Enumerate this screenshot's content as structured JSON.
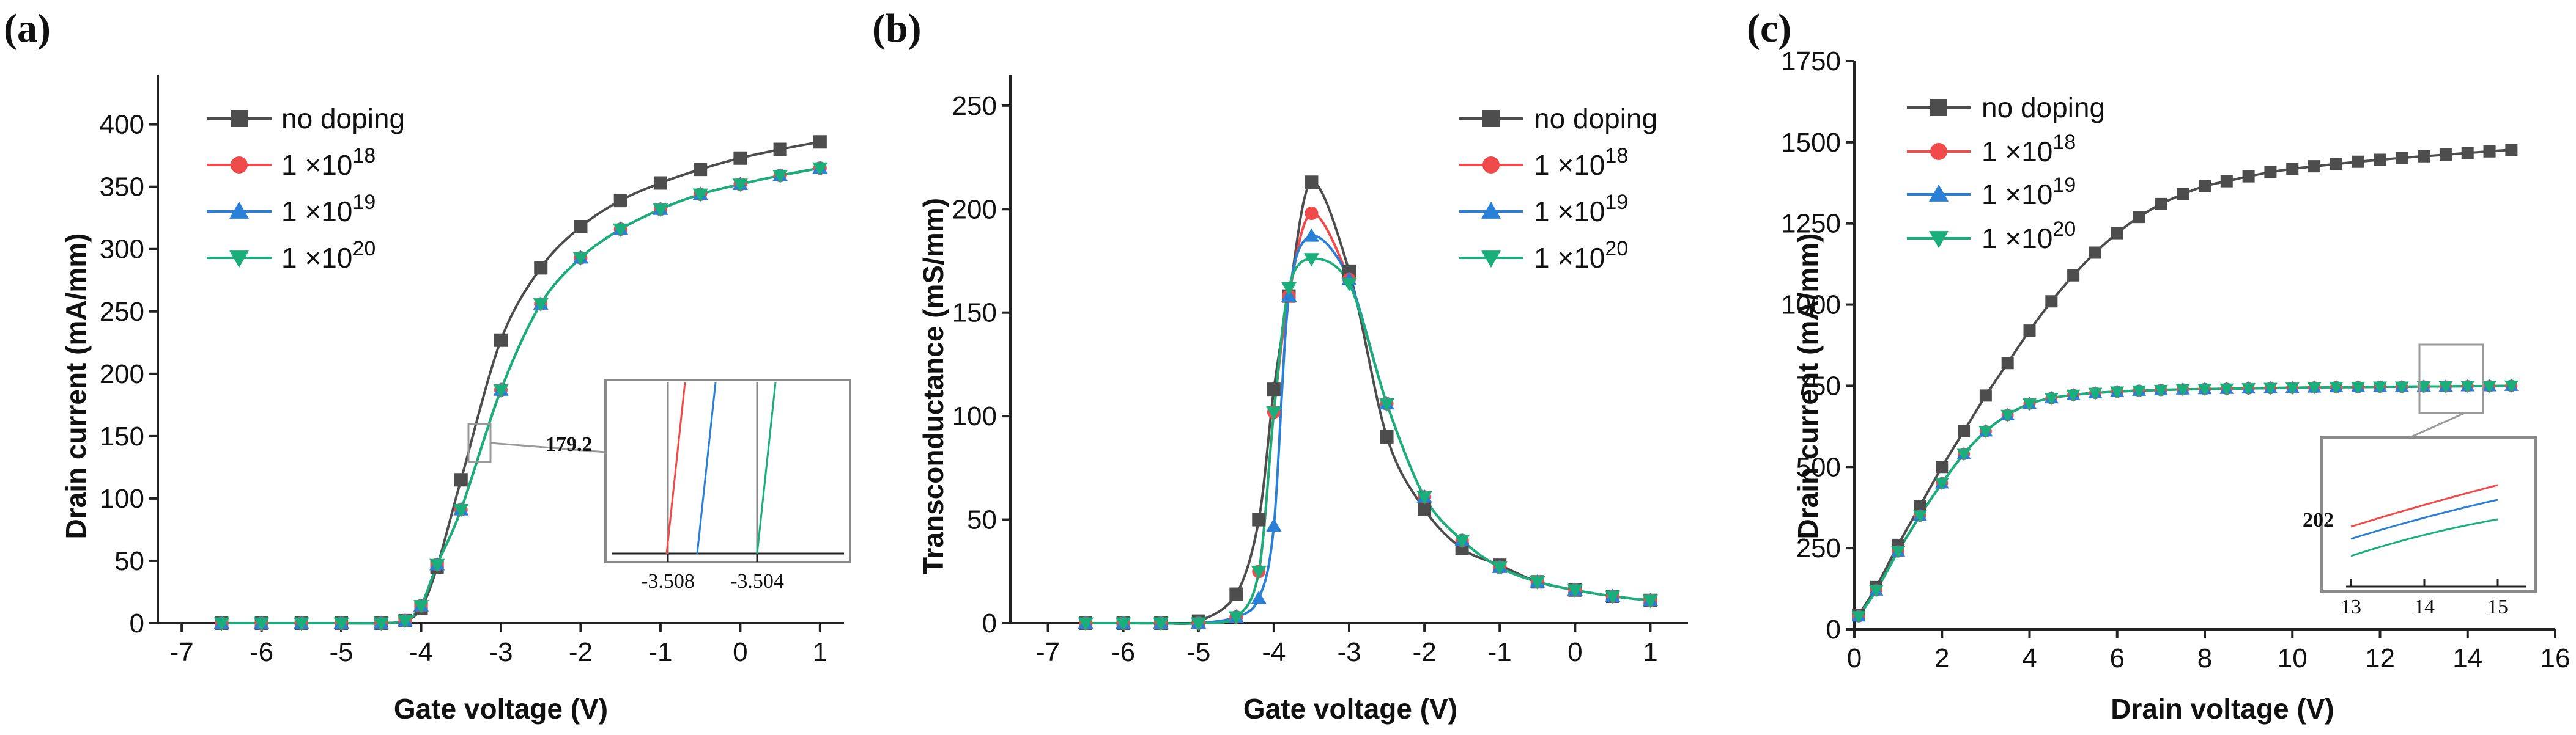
{
  "figure": {
    "colors": {
      "no_doping": "#4d4d4d",
      "d1e18": "#f04a4a",
      "d1e19": "#2a7fd6",
      "d1e20": "#1aaf7a",
      "axis": "#222222",
      "inset_frame": "#9a9a9a"
    },
    "legend_labels": [
      {
        "base": "no doping",
        "exp": ""
      },
      {
        "base": "1 ×10",
        "exp": "18"
      },
      {
        "base": "1 ×10",
        "exp": "19"
      },
      {
        "base": "1 ×10",
        "exp": "20"
      }
    ]
  },
  "chart_data": [
    {
      "panel": "(a)",
      "type": "line",
      "xlabel": "Gate voltage (V)",
      "ylabel": "Drain current (mA/mm)",
      "xlim": [
        -7.3,
        1.3
      ],
      "ylim": [
        0,
        440
      ],
      "xticks": [
        -7,
        -6,
        -5,
        -4,
        -3,
        -2,
        -1,
        0,
        1
      ],
      "yticks": [
        0,
        50,
        100,
        150,
        200,
        250,
        300,
        350,
        400
      ],
      "legend_position": "top-left",
      "x": [
        -6.5,
        -6.0,
        -5.5,
        -5.0,
        -4.5,
        -4.2,
        -4.0,
        -3.8,
        -3.5,
        -3.0,
        -2.5,
        -2.0,
        -1.5,
        -1.0,
        -0.5,
        0.0,
        0.5,
        1.0
      ],
      "series": [
        {
          "name": "no doping",
          "marker": "square",
          "values": [
            0,
            0,
            0,
            0,
            0,
            2,
            12,
            45,
            115,
            227,
            285,
            318,
            339,
            353,
            364,
            373,
            380,
            386
          ]
        },
        {
          "name": "1 ×10^18",
          "marker": "circle",
          "values": [
            0,
            0,
            0,
            0,
            0,
            2,
            14,
            47,
            91,
            187,
            256,
            293,
            316,
            332,
            344,
            352,
            359,
            365
          ]
        },
        {
          "name": "1 ×10^19",
          "marker": "triangle-up",
          "values": [
            0,
            0,
            0,
            0,
            0,
            2,
            14,
            47,
            91,
            187,
            256,
            293,
            316,
            332,
            344,
            352,
            359,
            365
          ]
        },
        {
          "name": "1 ×10^20",
          "marker": "triangle-down",
          "values": [
            0,
            0,
            0,
            0,
            0,
            2,
            14,
            47,
            91,
            187,
            256,
            293,
            316,
            332,
            344,
            352,
            359,
            365
          ]
        }
      ],
      "inset": {
        "annotation": "179.2",
        "xticks": [
          "-3.508",
          "-3.504"
        ]
      }
    },
    {
      "panel": "(b)",
      "type": "line",
      "xlabel": "Gate voltage (V)",
      "ylabel": "Transconductance (mS/mm)",
      "xlim": [
        -7.5,
        1.5
      ],
      "ylim": [
        0,
        265
      ],
      "xticks": [
        -7,
        -6,
        -5,
        -4,
        -3,
        -2,
        -1,
        0,
        1
      ],
      "yticks": [
        0,
        50,
        100,
        150,
        200,
        250
      ],
      "legend_position": "top-right",
      "x": [
        -6.5,
        -6.0,
        -5.5,
        -5.0,
        -4.5,
        -4.2,
        -4.0,
        -3.8,
        -3.5,
        -3.0,
        -2.5,
        -2.0,
        -1.5,
        -1.0,
        -0.5,
        0.0,
        0.5,
        1.0
      ],
      "series": [
        {
          "name": "no doping",
          "marker": "square",
          "values": [
            0,
            0,
            0,
            1,
            14,
            50,
            113,
            158,
            213,
            170,
            90,
            55,
            36,
            28,
            20,
            16,
            13,
            11
          ]
        },
        {
          "name": "1 ×10^18",
          "marker": "circle",
          "values": [
            0,
            0,
            0,
            0,
            3,
            25,
            102,
            158,
            198,
            166,
            106,
            61,
            40,
            27,
            20,
            16,
            13,
            11
          ]
        },
        {
          "name": "1 ×10^19",
          "marker": "triangle-up",
          "values": [
            0,
            0,
            0,
            0,
            3,
            12,
            47,
            158,
            187,
            166,
            106,
            61,
            40,
            27,
            20,
            16,
            13,
            11
          ]
        },
        {
          "name": "1 ×10^20",
          "marker": "triangle-down",
          "values": [
            0,
            0,
            0,
            0,
            3,
            25,
            102,
            162,
            176,
            164,
            106,
            61,
            40,
            27,
            20,
            16,
            13,
            11
          ]
        }
      ]
    },
    {
      "panel": "(c)",
      "type": "line",
      "xlabel": "Drain voltage (V)",
      "ylabel": "Drain current (mA/mm)",
      "xlim": [
        0,
        16
      ],
      "ylim": [
        0,
        1750
      ],
      "xticks": [
        0,
        2,
        4,
        6,
        8,
        10,
        12,
        14,
        16
      ],
      "yticks": [
        0,
        250,
        500,
        750,
        1000,
        1250,
        1500,
        1750
      ],
      "legend_position": "top-left",
      "x": [
        0.1,
        0.5,
        1.0,
        1.5,
        2.0,
        2.5,
        3.0,
        3.5,
        4.0,
        4.5,
        5.0,
        5.5,
        6.0,
        6.5,
        7.0,
        7.5,
        8.0,
        8.5,
        9.0,
        9.5,
        10.0,
        10.5,
        11.0,
        11.5,
        12.0,
        12.5,
        13.0,
        13.5,
        14.0,
        14.5,
        15.0
      ],
      "series": [
        {
          "name": "no doping",
          "marker": "square",
          "values": [
            45,
            130,
            260,
            380,
            500,
            610,
            720,
            820,
            920,
            1010,
            1090,
            1160,
            1220,
            1270,
            1310,
            1340,
            1365,
            1380,
            1395,
            1408,
            1418,
            1426,
            1433,
            1440,
            1446,
            1452,
            1457,
            1462,
            1467,
            1472,
            1477
          ]
        },
        {
          "name": "1 ×10^18",
          "marker": "circle",
          "values": [
            40,
            120,
            240,
            350,
            450,
            540,
            610,
            660,
            695,
            712,
            722,
            728,
            732,
            735,
            737,
            739,
            740,
            741,
            742,
            743,
            744,
            745,
            746,
            746,
            747,
            747,
            748,
            748,
            749,
            749,
            750
          ]
        },
        {
          "name": "1 ×10^19",
          "marker": "triangle-up",
          "values": [
            40,
            120,
            240,
            350,
            450,
            540,
            610,
            660,
            695,
            712,
            722,
            728,
            732,
            735,
            737,
            739,
            740,
            741,
            742,
            743,
            744,
            745,
            746,
            746,
            747,
            747,
            748,
            748,
            749,
            749,
            750
          ]
        },
        {
          "name": "1 ×10^20",
          "marker": "triangle-down",
          "values": [
            40,
            120,
            240,
            350,
            450,
            540,
            610,
            660,
            695,
            712,
            722,
            728,
            732,
            735,
            737,
            739,
            740,
            741,
            742,
            743,
            744,
            745,
            746,
            746,
            747,
            747,
            748,
            748,
            749,
            749,
            750
          ]
        }
      ],
      "inset": {
        "annotation": "202",
        "xticks": [
          "13",
          "14",
          "15"
        ]
      }
    }
  ]
}
